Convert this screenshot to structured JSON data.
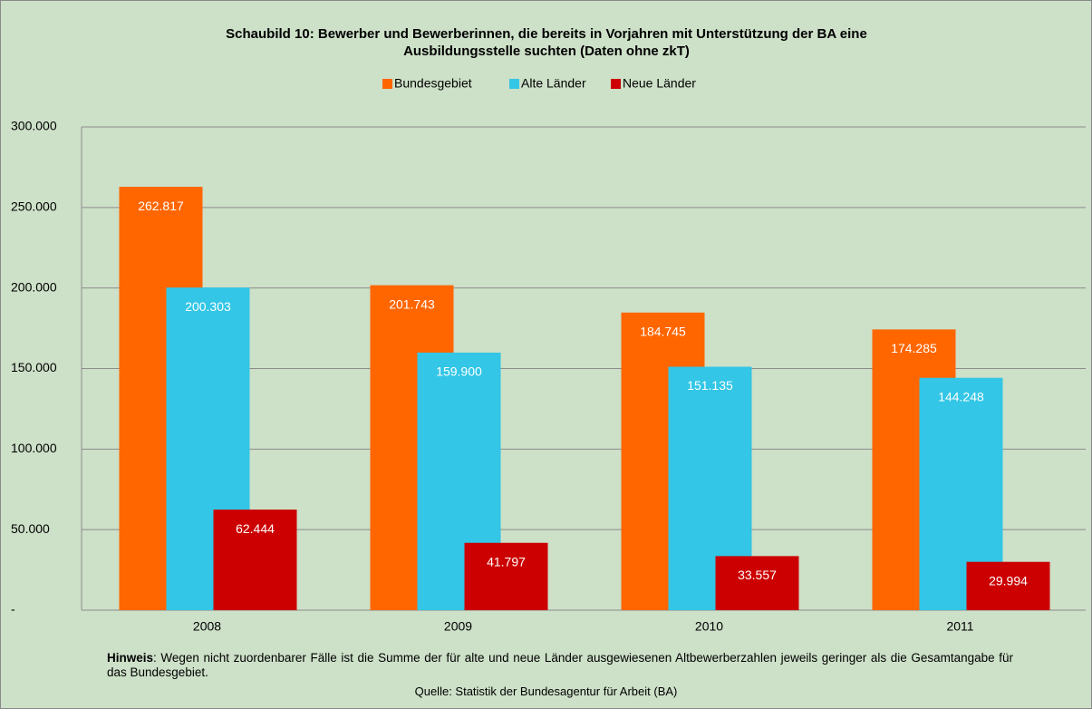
{
  "chart_data": {
    "type": "bar",
    "title": [
      "Schaubild 10: Bewerber und Bewerberinnen, die bereits in Vorjahren mit Unterstützung der BA eine",
      "Ausbildungsstelle suchten (Daten ohne zkT)"
    ],
    "categories": [
      "2008",
      "2009",
      "2010",
      "2011"
    ],
    "series": [
      {
        "name": "Bundesgebiet",
        "color": "#ff6600",
        "values": [
          262817,
          201743,
          184745,
          174285
        ],
        "value_labels": [
          "262.817",
          "201.743",
          "184.745",
          "174.285"
        ]
      },
      {
        "name": "Alte Länder",
        "color": "#33c6e6",
        "values": [
          200303,
          159900,
          151135,
          144248
        ],
        "value_labels": [
          "200.303",
          "159.900",
          "151.135",
          "144.248"
        ]
      },
      {
        "name": "Neue Länder",
        "color": "#cc0000",
        "values": [
          62444,
          41797,
          33557,
          29994
        ],
        "value_labels": [
          "62.444",
          "41.797",
          "33.557",
          "29.994"
        ]
      }
    ],
    "ylim": [
      0,
      300000
    ],
    "yticks": [
      {
        "value": 0,
        "label": "-"
      },
      {
        "value": 50000,
        "label": "50.000"
      },
      {
        "value": 100000,
        "label": "100.000"
      },
      {
        "value": 150000,
        "label": "150.000"
      },
      {
        "value": 200000,
        "label": "200.000"
      },
      {
        "value": 250000,
        "label": "250.000"
      },
      {
        "value": 300000,
        "label": "300.000"
      }
    ],
    "grid": true,
    "legend": "top",
    "note": {
      "label": "Hinweis",
      "text": ": Wegen nicht zuordenbarer Fälle ist die Summe der für alte und neue Länder ausgewiesenen Altbewerberzahlen jeweils geringer als die Gesamtangabe für das Bundesgebiet."
    },
    "source": "Quelle: Statistik der Bundesagentur für Arbeit (BA)"
  }
}
